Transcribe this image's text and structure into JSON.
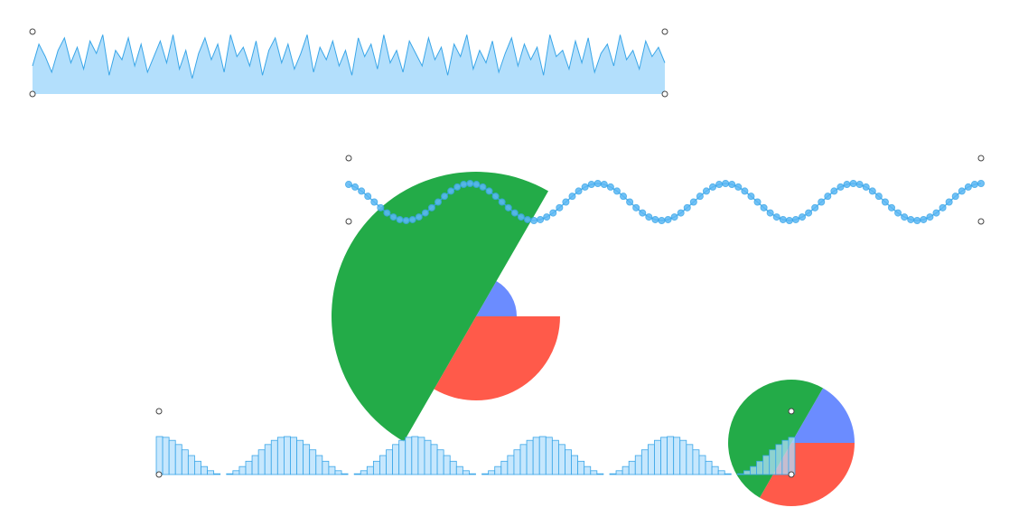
{
  "chart_data": [
    {
      "type": "area",
      "color": "#3aa6e8",
      "fill": "#b3dffc",
      "ylim": [
        0,
        1
      ],
      "values": [
        0.45,
        0.8,
        0.6,
        0.35,
        0.7,
        0.9,
        0.5,
        0.75,
        0.4,
        0.85,
        0.65,
        0.95,
        0.3,
        0.7,
        0.55,
        0.9,
        0.45,
        0.8,
        0.35,
        0.6,
        0.85,
        0.5,
        0.95,
        0.4,
        0.7,
        0.25,
        0.65,
        0.9,
        0.55,
        0.8,
        0.35,
        0.95,
        0.6,
        0.75,
        0.45,
        0.85,
        0.3,
        0.7,
        0.9,
        0.5,
        0.8,
        0.4,
        0.65,
        0.95,
        0.35,
        0.75,
        0.55,
        0.85,
        0.45,
        0.7,
        0.3,
        0.9,
        0.6,
        0.8,
        0.4,
        0.95,
        0.5,
        0.7,
        0.35,
        0.85,
        0.65,
        0.45,
        0.9,
        0.55,
        0.75,
        0.3,
        0.8,
        0.6,
        0.95,
        0.4,
        0.7,
        0.5,
        0.85,
        0.35,
        0.65,
        0.9,
        0.45,
        0.8,
        0.55,
        0.75,
        0.3,
        0.95,
        0.6,
        0.7,
        0.4,
        0.85,
        0.5,
        0.9,
        0.35,
        0.65,
        0.8,
        0.45,
        0.95,
        0.55,
        0.7,
        0.4,
        0.85,
        0.6,
        0.75,
        0.5
      ]
    },
    {
      "type": "pie",
      "colors": [
        "#6b8cff",
        "#ff5a4a",
        "#23ab48"
      ],
      "values": [
        1,
        2,
        3
      ],
      "radii": [
        45,
        93,
        160
      ]
    },
    {
      "type": "line",
      "color": "#3aa6e8",
      "marker_fill": "#5bb8f5",
      "ylim": [
        -1,
        1
      ],
      "values": [
        0.95,
        0.81,
        0.59,
        0.31,
        0,
        -0.31,
        -0.59,
        -0.81,
        -0.95,
        -1,
        -0.95,
        -0.81,
        -0.59,
        -0.31,
        0,
        0.31,
        0.59,
        0.81,
        0.95,
        1,
        0.95,
        0.81,
        0.59,
        0.31,
        0,
        -0.31,
        -0.59,
        -0.81,
        -0.95,
        -1,
        -0.95,
        -0.81,
        -0.59,
        -0.31,
        0,
        0.31,
        0.59,
        0.81,
        0.95,
        1,
        0.95,
        0.81,
        0.59,
        0.31,
        0,
        -0.31,
        -0.59,
        -0.81,
        -0.95,
        -1,
        -0.95,
        -0.81,
        -0.59,
        -0.31,
        0,
        0.31,
        0.59,
        0.81,
        0.95,
        1,
        0.95,
        0.81,
        0.59,
        0.31,
        0,
        -0.31,
        -0.59,
        -0.81,
        -0.95,
        -1,
        -0.95,
        -0.81,
        -0.59,
        -0.31,
        0,
        0.31,
        0.59,
        0.81,
        0.95,
        1,
        0.95,
        0.81,
        0.59,
        0.31,
        0,
        -0.31,
        -0.59,
        -0.81,
        -0.95,
        -1,
        -0.95,
        -0.81,
        -0.59,
        -0.31,
        0,
        0.31,
        0.59,
        0.81,
        0.95,
        1
      ]
    },
    {
      "type": "pie",
      "colors": [
        "#6b8cff",
        "#ff5a4a",
        "#23ab48"
      ],
      "values": [
        1,
        2,
        3
      ]
    },
    {
      "type": "bar",
      "color": "#3aa6e8",
      "fill": "#b3dffc",
      "ylim": [
        0,
        1
      ],
      "values": [
        1,
        0.98,
        0.9,
        0.79,
        0.65,
        0.5,
        0.35,
        0.21,
        0.1,
        0.02,
        0,
        0.02,
        0.1,
        0.21,
        0.35,
        0.5,
        0.65,
        0.79,
        0.9,
        0.98,
        1,
        0.98,
        0.9,
        0.79,
        0.65,
        0.5,
        0.35,
        0.21,
        0.1,
        0.02,
        0,
        0.02,
        0.1,
        0.21,
        0.35,
        0.5,
        0.65,
        0.79,
        0.9,
        0.98,
        1,
        0.98,
        0.9,
        0.79,
        0.65,
        0.5,
        0.35,
        0.21,
        0.1,
        0.02,
        0,
        0.02,
        0.1,
        0.21,
        0.35,
        0.5,
        0.65,
        0.79,
        0.9,
        0.98,
        1,
        0.98,
        0.9,
        0.79,
        0.65,
        0.5,
        0.35,
        0.21,
        0.1,
        0.02,
        0,
        0.02,
        0.1,
        0.21,
        0.35,
        0.5,
        0.65,
        0.79,
        0.9,
        0.98,
        1,
        0.98,
        0.9,
        0.79,
        0.65,
        0.5,
        0.35,
        0.21,
        0.1,
        0.02,
        0,
        0.02,
        0.1,
        0.21,
        0.35,
        0.5,
        0.65,
        0.79,
        0.9,
        0.98
      ]
    }
  ]
}
